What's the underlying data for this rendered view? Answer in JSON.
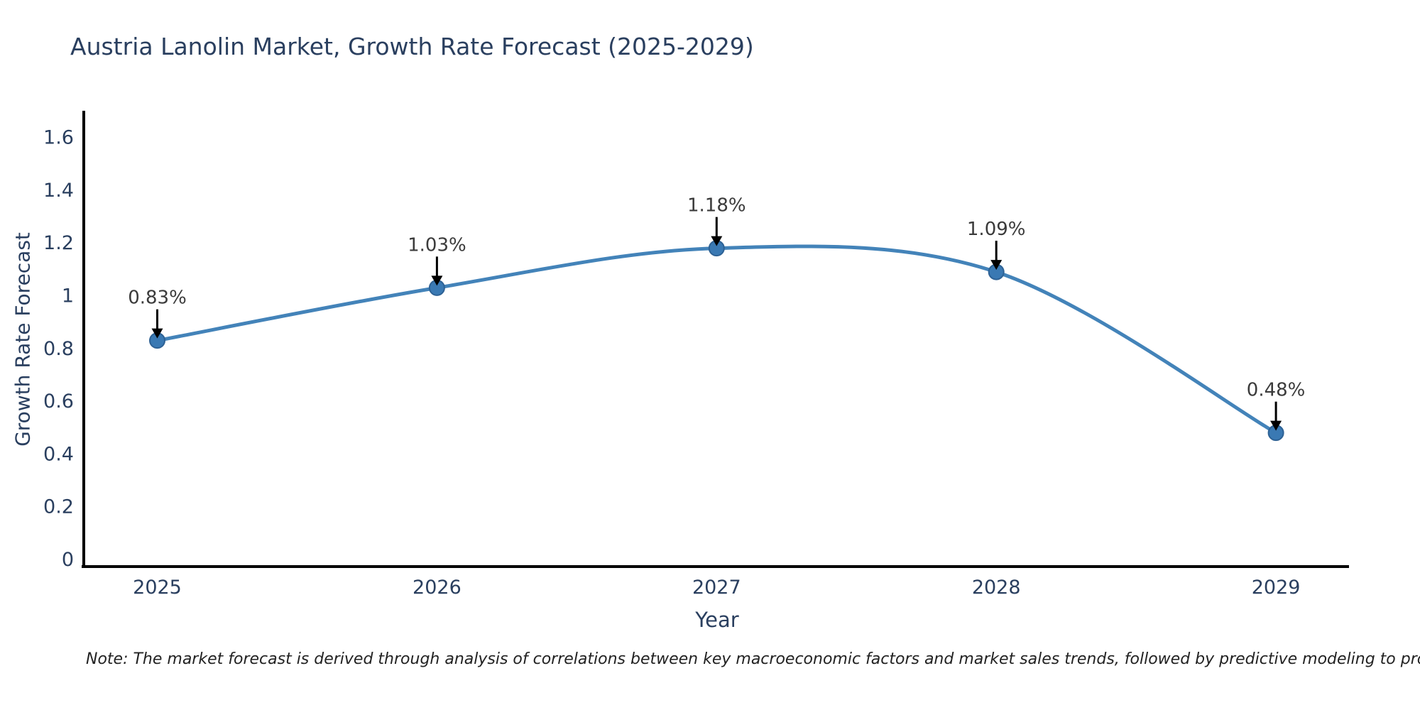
{
  "title": "Austria Lanolin Market, Growth Rate Forecast (2025-2029)",
  "note": "Note: The market forecast is derived through analysis of correlations between key macroeconomic factors and market sales trends, followed by predictive modeling to project future sales",
  "chart_data": {
    "type": "line",
    "title": "Austria Lanolin Market, Growth Rate Forecast (2025-2029)",
    "xlabel": "Year",
    "ylabel": "Growth Rate Forecast",
    "x": [
      2025,
      2026,
      2027,
      2028,
      2029
    ],
    "y": [
      0.83,
      1.03,
      1.18,
      1.09,
      0.48
    ],
    "point_labels": [
      "0.83%",
      "1.03%",
      "1.18%",
      "1.09%",
      "0.48%"
    ],
    "xtick_labels": [
      "2025",
      "2026",
      "2027",
      "2028",
      "2029"
    ],
    "ytick_values": [
      0,
      0.2,
      0.4,
      0.6,
      0.8,
      1,
      1.2,
      1.4,
      1.6
    ],
    "xlim": [
      2025,
      2029
    ],
    "ylim": [
      0,
      1.7
    ],
    "line_shape": "spline",
    "grid": false,
    "legend": "none",
    "colors": {
      "line": "#4383b9",
      "marker_fill": "#3a79b3",
      "marker_edge": "#2e6295",
      "axis_line": "#000000",
      "tick_text": "#2a3f5f",
      "annotation_text": "#3b3b3b",
      "annotation_arrow": "#000000",
      "background": "#ffffff"
    }
  }
}
